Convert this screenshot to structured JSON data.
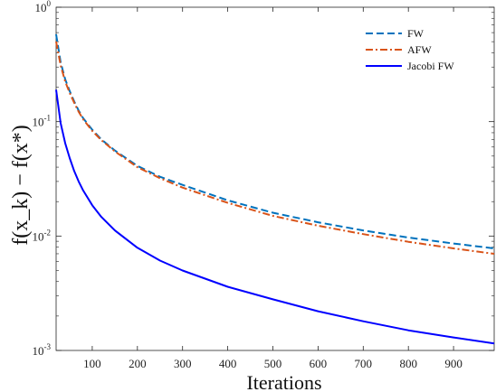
{
  "chart_data": {
    "type": "line",
    "title": "",
    "xlabel": "Iterations",
    "ylabel": "f(x_k) − f(x*)",
    "xlim": [
      20,
      990
    ],
    "ylim": [
      0.001,
      1
    ],
    "yscale": "log",
    "grid": false,
    "legend_position": "top-right",
    "x_ticks": [
      100,
      200,
      300,
      400,
      500,
      600,
      700,
      800,
      900
    ],
    "y_ticks": [
      {
        "value": 0.001,
        "base": "10",
        "exp": "-3"
      },
      {
        "value": 0.01,
        "base": "10",
        "exp": "-2"
      },
      {
        "value": 0.1,
        "base": "10",
        "exp": "-1"
      },
      {
        "value": 1,
        "base": "10",
        "exp": "0"
      }
    ],
    "series": [
      {
        "name": "FW",
        "color": "#0072BD",
        "style": "dashed",
        "x": [
          20,
          30,
          40,
          50,
          60,
          70,
          80,
          100,
          120,
          150,
          200,
          250,
          300,
          400,
          500,
          600,
          700,
          800,
          900,
          990
        ],
        "y": [
          0.58,
          0.33,
          0.235,
          0.185,
          0.15,
          0.125,
          0.107,
          0.085,
          0.07,
          0.056,
          0.041,
          0.033,
          0.028,
          0.0205,
          0.016,
          0.0132,
          0.0112,
          0.0097,
          0.0086,
          0.0078
        ]
      },
      {
        "name": "AFW",
        "color": "#D95319",
        "style": "dashdot",
        "x": [
          20,
          30,
          40,
          50,
          60,
          70,
          80,
          100,
          120,
          150,
          200,
          250,
          300,
          400,
          500,
          600,
          700,
          800,
          900,
          990
        ],
        "y": [
          0.5,
          0.31,
          0.225,
          0.178,
          0.146,
          0.122,
          0.105,
          0.083,
          0.069,
          0.055,
          0.04,
          0.032,
          0.0265,
          0.0195,
          0.015,
          0.0123,
          0.0104,
          0.0089,
          0.0078,
          0.007
        ]
      },
      {
        "name": "Jacobi FW",
        "color": "#0000FF",
        "style": "solid",
        "x": [
          20,
          30,
          40,
          50,
          60,
          70,
          80,
          100,
          120,
          150,
          200,
          250,
          300,
          400,
          500,
          600,
          700,
          800,
          900,
          990
        ],
        "y": [
          0.19,
          0.097,
          0.065,
          0.048,
          0.037,
          0.03,
          0.025,
          0.0186,
          0.0147,
          0.0112,
          0.0079,
          0.0061,
          0.005,
          0.0036,
          0.0028,
          0.0022,
          0.0018,
          0.0015,
          0.0013,
          0.00115
        ]
      }
    ]
  }
}
